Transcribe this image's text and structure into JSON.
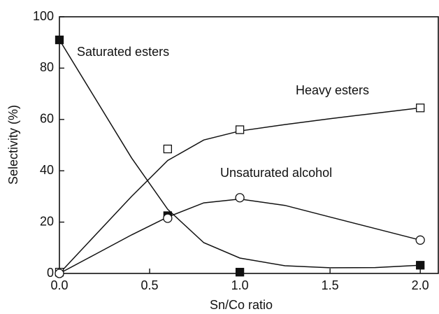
{
  "chart_data": {
    "type": "scatter",
    "x_label": "Sn/Co ratio",
    "y_label": "Selectivity (%)",
    "xlim": [
      0,
      2.1
    ],
    "ylim": [
      0,
      100
    ],
    "xticks": [
      {
        "value": 0,
        "label": "0.0"
      },
      {
        "value": 0.5,
        "label": "0.5"
      },
      {
        "value": 1,
        "label": "1.0"
      },
      {
        "value": 1.5,
        "label": "1.5"
      },
      {
        "value": 2,
        "label": "2.0"
      }
    ],
    "yticks": [
      0,
      20,
      40,
      60,
      80,
      100
    ],
    "series": [
      {
        "name": "Saturated esters",
        "color": "#111111",
        "marker": "filled-square",
        "x": [
          0,
          0.6,
          1.0,
          2.0
        ],
        "values": [
          91,
          22.5,
          0.5,
          3.2
        ],
        "fit": {
          "x": [
            0,
            0.2,
            0.4,
            0.6,
            0.8,
            1.0,
            1.25,
            1.5,
            1.75,
            2.0
          ],
          "values": [
            91,
            68,
            45,
            25,
            12,
            6,
            3,
            2.2,
            2.3,
            3.2
          ]
        }
      },
      {
        "name": "Heavy esters",
        "color": "#111111",
        "marker": "open-square",
        "x": [
          0,
          0.6,
          1.0,
          2.0
        ],
        "values": [
          0.5,
          48.5,
          56,
          64.5
        ],
        "fit": {
          "x": [
            0,
            0.2,
            0.4,
            0.6,
            0.8,
            1.0,
            1.25,
            1.5,
            1.75,
            2.0
          ],
          "values": [
            0,
            15,
            30,
            44,
            52,
            55.5,
            58,
            60.3,
            62.4,
            64.5
          ]
        }
      },
      {
        "name": "Unsaturated alcohol",
        "color": "#111111",
        "marker": "open-circle",
        "x": [
          0,
          0.6,
          1.0,
          2.0
        ],
        "values": [
          0,
          21.5,
          29.5,
          13
        ],
        "fit": {
          "x": [
            0,
            0.2,
            0.4,
            0.6,
            0.8,
            1.0,
            1.25,
            1.5,
            1.75,
            2.0
          ],
          "values": [
            0,
            7.5,
            15,
            22,
            27.5,
            29,
            26.5,
            22,
            17.5,
            13
          ]
        }
      }
    ]
  }
}
